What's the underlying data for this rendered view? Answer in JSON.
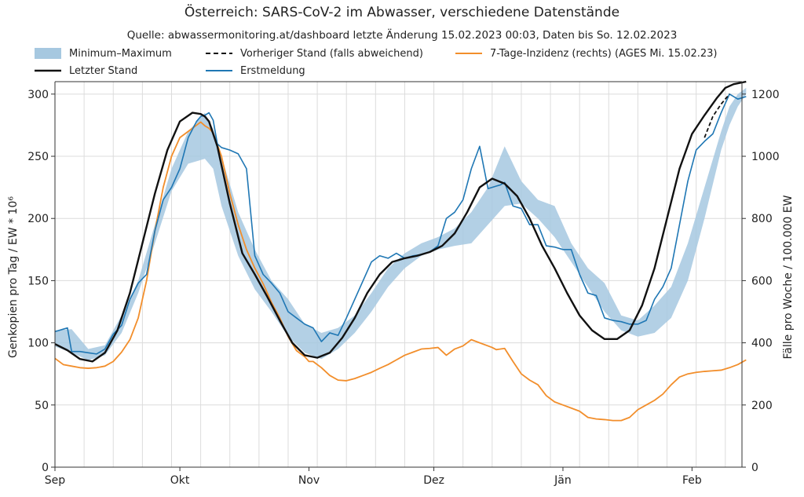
{
  "chart_data": {
    "type": "line",
    "title": "Österreich: SARS-CoV-2 im Abwasser, verschiedene Datenstände",
    "subtitle": "Quelle: abwassermonitoring.at/dashboard letzte Änderung 15.02.2023 00:03, Daten bis So. 12.02.2023",
    "ylabel": "Genkopien pro Tag / EW * 10⁶",
    "ylabel_right": "Fälle pro Woche / 100.000 EW",
    "x_ticks": [
      "Sep",
      "Okt",
      "Nov",
      "Dez",
      "Jän",
      "Feb"
    ],
    "x_tick_days": [
      0,
      30,
      61,
      91,
      122,
      153
    ],
    "xlim_days": [
      0,
      165
    ],
    "ylim": [
      0,
      310
    ],
    "y_ticks": [
      0,
      50,
      100,
      150,
      200,
      250,
      300
    ],
    "ylim_right": [
      0,
      1240
    ],
    "y_ticks_right": [
      0,
      200,
      400,
      600,
      800,
      1000,
      1200
    ],
    "grid": true,
    "legend_position": "top",
    "legend": [
      {
        "label": "Minimum–Maximum",
        "style": "band",
        "color": "#a6c8e0"
      },
      {
        "label": "Vorheriger Stand (falls abweichend)",
        "style": "dashed",
        "color": "#111111"
      },
      {
        "label": "7-Tage-Inzidenz (rechts) (AGES Mi. 15.02.23)",
        "style": "line",
        "color": "#f28e2b"
      },
      {
        "label": "Letzter Stand",
        "style": "line",
        "color": "#111111"
      },
      {
        "label": "Erstmeldung",
        "style": "line",
        "color": "#1f77b4"
      }
    ],
    "series": [
      {
        "name": "Minimum–Maximum",
        "axis": "left",
        "x": [
          0,
          4,
          8,
          12,
          16,
          20,
          24,
          28,
          32,
          36,
          38,
          40,
          44,
          48,
          52,
          56,
          60,
          64,
          68,
          72,
          76,
          80,
          84,
          88,
          92,
          96,
          100,
          104,
          108,
          112,
          116,
          120,
          124,
          128,
          132,
          136,
          140,
          144,
          148,
          152,
          156,
          160,
          162,
          164,
          166
        ],
        "low": [
          97,
          92,
          86,
          90,
          108,
          140,
          180,
          222,
          244,
          248,
          240,
          210,
          170,
          143,
          125,
          105,
          92,
          87,
          95,
          108,
          125,
          145,
          160,
          170,
          175,
          178,
          180,
          195,
          210,
          212,
          200,
          185,
          165,
          145,
          125,
          110,
          105,
          108,
          120,
          150,
          200,
          255,
          275,
          290,
          300
        ],
        "high": [
          110,
          111,
          95,
          98,
          122,
          150,
          195,
          240,
          270,
          285,
          272,
          250,
          205,
          175,
          150,
          135,
          115,
          108,
          112,
          122,
          140,
          160,
          172,
          180,
          185,
          192,
          205,
          225,
          258,
          230,
          215,
          210,
          180,
          160,
          148,
          122,
          118,
          130,
          145,
          180,
          225,
          270,
          290,
          300,
          305
        ]
      },
      {
        "name": "Letzter Stand",
        "axis": "left",
        "x": [
          0,
          3,
          6,
          9,
          12,
          15,
          18,
          21,
          24,
          27,
          30,
          33,
          35,
          36,
          37,
          39,
          42,
          45,
          48,
          51,
          54,
          57,
          60,
          63,
          66,
          69,
          72,
          75,
          78,
          81,
          84,
          87,
          90,
          93,
          96,
          99,
          102,
          105,
          108,
          111,
          114,
          117,
          120,
          123,
          126,
          129,
          132,
          135,
          138,
          141,
          144,
          147,
          150,
          153,
          156,
          159,
          161,
          163,
          166
        ],
        "y": [
          99,
          94,
          87,
          85,
          92,
          110,
          140,
          180,
          220,
          255,
          278,
          285,
          284,
          282,
          278,
          258,
          212,
          172,
          155,
          137,
          118,
          100,
          90,
          88,
          92,
          104,
          120,
          140,
          155,
          165,
          168,
          170,
          173,
          178,
          188,
          205,
          225,
          232,
          228,
          218,
          200,
          178,
          160,
          140,
          122,
          110,
          103,
          103,
          110,
          130,
          160,
          200,
          240,
          268,
          283,
          297,
          305,
          308,
          310
        ]
      },
      {
        "name": "Vorheriger Stand (falls abweichend)",
        "axis": "left",
        "x": [
          156,
          158,
          160,
          162
        ],
        "y": [
          265,
          282,
          292,
          300
        ]
      },
      {
        "name": "Erstmeldung",
        "axis": "left",
        "x": [
          0,
          2,
          3,
          4,
          6,
          8,
          10,
          12,
          14,
          16,
          18,
          20,
          22,
          24,
          26,
          28,
          30,
          32,
          34,
          35,
          36,
          37,
          38,
          39,
          40,
          42,
          44,
          46,
          48,
          50,
          52,
          54,
          56,
          58,
          60,
          62,
          64,
          66,
          68,
          70,
          72,
          74,
          76,
          78,
          80,
          82,
          84,
          86,
          88,
          90,
          92,
          94,
          96,
          98,
          100,
          102,
          104,
          105,
          106,
          107,
          108,
          110,
          112,
          114,
          116,
          118,
          120,
          122,
          124,
          126,
          128,
          130,
          132,
          134,
          136,
          138,
          140,
          142,
          144,
          146,
          148,
          150,
          152,
          154,
          156,
          158,
          160,
          162,
          164,
          166
        ],
        "y": [
          109,
          111,
          112,
          93,
          93,
          92,
          91,
          95,
          107,
          114,
          135,
          148,
          155,
          190,
          215,
          225,
          240,
          265,
          278,
          282,
          283,
          285,
          279,
          260,
          257,
          255,
          252,
          240,
          170,
          155,
          148,
          140,
          125,
          120,
          115,
          112,
          101,
          108,
          106,
          120,
          135,
          150,
          165,
          170,
          168,
          172,
          168,
          170,
          171,
          173,
          178,
          200,
          205,
          215,
          240,
          258,
          224,
          225,
          226,
          227,
          229,
          210,
          208,
          195,
          195,
          178,
          177,
          175,
          175,
          155,
          140,
          138,
          120,
          118,
          117,
          115,
          115,
          118,
          135,
          145,
          160,
          195,
          230,
          255,
          262,
          268,
          285,
          300,
          296,
          298
        ]
      },
      {
        "name": "7-Tage-Inzidenz (rechts) (AGES Mi. 15.02.23)",
        "axis": "right",
        "x": [
          0,
          2,
          4,
          6,
          8,
          10,
          12,
          14,
          16,
          18,
          20,
          22,
          24,
          26,
          28,
          30,
          32,
          34,
          35,
          36,
          37,
          38,
          40,
          42,
          44,
          46,
          48,
          50,
          52,
          54,
          56,
          58,
          60,
          61,
          62,
          64,
          66,
          68,
          70,
          72,
          74,
          76,
          78,
          80,
          82,
          84,
          86,
          88,
          90,
          92,
          94,
          96,
          98,
          100,
          102,
          104,
          105,
          106,
          108,
          110,
          112,
          114,
          116,
          118,
          120,
          122,
          124,
          126,
          128,
          130,
          132,
          134,
          136,
          138,
          140,
          142,
          144,
          146,
          148,
          150,
          152,
          154,
          156,
          158,
          160,
          162,
          164,
          166
        ],
        "y": [
          350,
          330,
          325,
          320,
          318,
          320,
          325,
          340,
          370,
          410,
          480,
          600,
          760,
          900,
          1000,
          1060,
          1080,
          1100,
          1110,
          1098,
          1090,
          1075,
          1000,
          880,
          780,
          700,
          640,
          590,
          530,
          480,
          420,
          375,
          355,
          340,
          340,
          320,
          295,
          280,
          278,
          285,
          295,
          305,
          318,
          330,
          345,
          360,
          370,
          380,
          382,
          385,
          360,
          380,
          390,
          410,
          400,
          390,
          385,
          378,
          382,
          340,
          300,
          280,
          265,
          230,
          210,
          200,
          190,
          180,
          160,
          155,
          153,
          150,
          150,
          160,
          185,
          200,
          215,
          235,
          265,
          290,
          300,
          305,
          308,
          310,
          312,
          320,
          330,
          345
        ]
      }
    ]
  }
}
